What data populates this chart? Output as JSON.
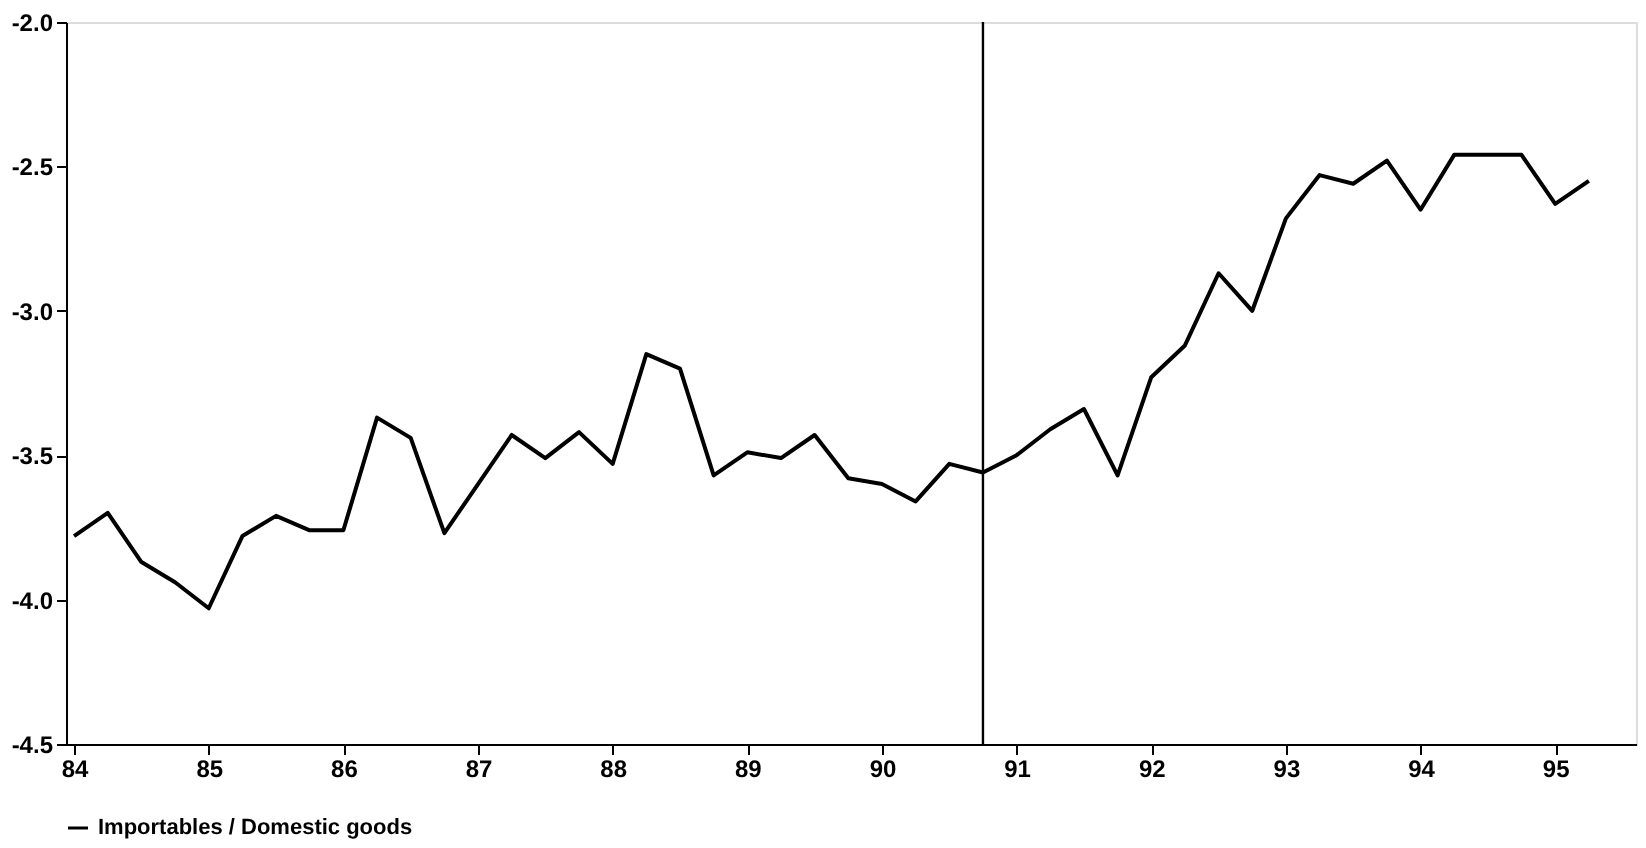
{
  "chart_data": {
    "type": "line",
    "xlim": [
      83.94,
      95.6
    ],
    "xticks": [
      84,
      85,
      86,
      87,
      88,
      89,
      90,
      91,
      92,
      93,
      94,
      95
    ],
    "ylim": [
      -4.5,
      -2.0
    ],
    "yticks": [
      {
        "value": -4.5,
        "label": "-4.5"
      },
      {
        "value": -4,
        "label": "-4.0"
      },
      {
        "value": -3.5,
        "label": "-3.5"
      },
      {
        "value": -3,
        "label": "-3.0"
      },
      {
        "value": -2.5,
        "label": "-2.5"
      },
      {
        "value": -2,
        "label": "-2.0"
      }
    ],
    "grid": false,
    "legend": "bottom",
    "line_style": "solid",
    "marker": "none",
    "x": [
      84.0,
      84.25,
      84.5,
      84.75,
      85.0,
      85.25,
      85.5,
      85.75,
      86.0,
      86.25,
      86.5,
      86.75,
      87.0,
      87.25,
      87.5,
      87.75,
      88.0,
      88.25,
      88.5,
      88.75,
      89.0,
      89.25,
      89.5,
      89.75,
      90.0,
      90.25,
      90.5,
      90.75,
      91.0,
      91.25,
      91.5,
      91.75,
      92.0,
      92.25,
      92.5,
      92.75,
      93.0,
      93.25,
      93.5,
      93.75,
      94.0,
      94.25,
      94.5,
      94.75,
      95.0,
      95.25
    ],
    "series": [
      {
        "name": "Importables / Domestic goods",
        "color": "#000000",
        "values": [
          -3.78,
          -3.7,
          -3.87,
          -3.94,
          -4.03,
          -3.78,
          -3.71,
          -3.76,
          -3.76,
          -3.37,
          -3.44,
          -3.77,
          -3.6,
          -3.43,
          -3.51,
          -3.42,
          -3.53,
          -3.15,
          -3.2,
          -3.57,
          -3.49,
          -3.51,
          -3.43,
          -3.58,
          -3.6,
          -3.66,
          -3.53,
          -3.56,
          -3.5,
          -3.41,
          -3.34,
          -3.57,
          -3.23,
          -3.12,
          -2.87,
          -3.0,
          -2.68,
          -2.53,
          -2.56,
          -2.48,
          -2.65,
          -2.46,
          -2.46,
          -2.46,
          -2.63,
          -2.55
        ]
      }
    ],
    "ref_lines": [
      {
        "axis": "x",
        "value": 90.75,
        "color": "#000000"
      }
    ]
  }
}
